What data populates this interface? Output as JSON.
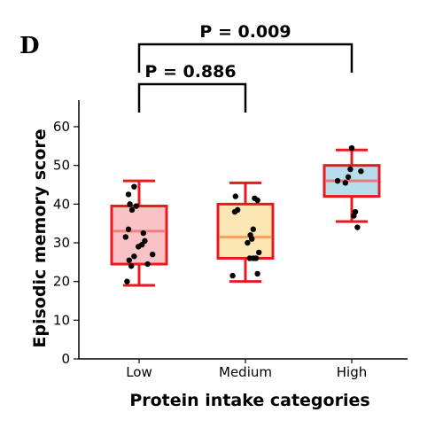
{
  "panel_label": "D",
  "chart_data": {
    "type": "box",
    "xlabel": "Protein intake categories",
    "ylabel": "Episodic memory score",
    "ylim": [
      0,
      65
    ],
    "yticks": [
      0,
      10,
      20,
      30,
      40,
      50,
      60
    ],
    "categories": [
      "Low",
      "Medium",
      "High"
    ],
    "boxes": [
      {
        "category": "Low",
        "whisker_low": 19,
        "q1": 24.5,
        "median": 33,
        "q3": 39.5,
        "whisker_high": 46,
        "fill": "#f8c2c6",
        "median_color": "#f08080",
        "points": [
          [
            -0.34,
            20
          ],
          [
            -0.22,
            24
          ],
          [
            -0.28,
            25.5
          ],
          [
            0.24,
            24.5
          ],
          [
            -0.14,
            26.5
          ],
          [
            0.38,
            27
          ],
          [
            -0.02,
            29
          ],
          [
            0.08,
            29.5
          ],
          [
            0.16,
            30.5
          ],
          [
            -0.38,
            31.5
          ],
          [
            0.12,
            32.5
          ],
          [
            -0.3,
            33.5
          ],
          [
            -0.2,
            38.5
          ],
          [
            -0.08,
            39.5
          ],
          [
            -0.26,
            40
          ],
          [
            -0.3,
            42.5
          ],
          [
            -0.14,
            44.5
          ]
        ]
      },
      {
        "category": "Medium",
        "whisker_low": 20,
        "q1": 26,
        "median": 31.5,
        "q3": 40,
        "whisker_high": 45.5,
        "fill": "#fce7b4",
        "median_color": "#f0a860",
        "points": [
          [
            -0.36,
            21.5
          ],
          [
            0.34,
            22
          ],
          [
            0.12,
            26
          ],
          [
            0.22,
            26
          ],
          [
            0.3,
            26
          ],
          [
            0.38,
            27.5
          ],
          [
            0.06,
            30
          ],
          [
            0.18,
            31
          ],
          [
            0.14,
            32
          ],
          [
            0.22,
            33.5
          ],
          [
            -0.3,
            38
          ],
          [
            -0.22,
            38.5
          ],
          [
            -0.28,
            42
          ],
          [
            0.26,
            41.5
          ],
          [
            0.34,
            41
          ]
        ]
      },
      {
        "category": "High",
        "whisker_low": 35.5,
        "q1": 42,
        "median": 46,
        "q3": 50,
        "whisker_high": 54,
        "fill": "#b7dcec",
        "median_color": "#e47a7a",
        "points": [
          [
            0.16,
            34
          ],
          [
            0.06,
            37
          ],
          [
            0.1,
            38
          ],
          [
            -0.4,
            46
          ],
          [
            -0.18,
            45.5
          ],
          [
            -0.1,
            47
          ],
          [
            0.26,
            48.5
          ],
          [
            -0.04,
            49
          ],
          [
            0.0,
            54.5
          ]
        ]
      }
    ],
    "comparisons": [
      {
        "from": "Low",
        "to": "Medium",
        "label": "P = 0.886"
      },
      {
        "from": "Low",
        "to": "High",
        "label": "P = 0.009"
      }
    ],
    "box_edge_color": "#e8191f",
    "point_color": "#000000"
  }
}
